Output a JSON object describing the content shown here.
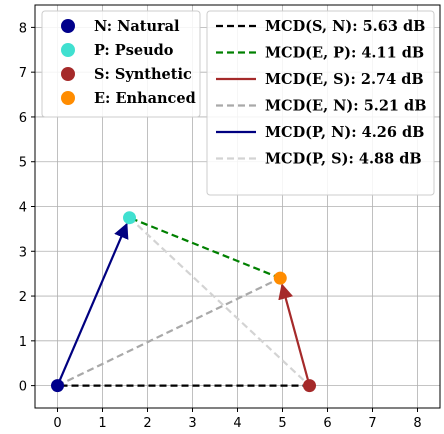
{
  "chart_data": {
    "type": "scatter",
    "xlim": [
      -0.5,
      8.5
    ],
    "ylim": [
      -0.5,
      8.5
    ],
    "x_ticks": [
      0,
      1,
      2,
      3,
      4,
      5,
      6,
      7,
      8
    ],
    "y_ticks": [
      0,
      1,
      2,
      3,
      4,
      5,
      6,
      7,
      8
    ],
    "grid": true,
    "points": [
      {
        "name": "N: Natural",
        "x": 0.0,
        "y": 0.0,
        "color": "#00008b"
      },
      {
        "name": "P: Pseudo",
        "x": 1.6,
        "y": 3.75,
        "color": "#40e0d0"
      },
      {
        "name": "S: Synthetic",
        "x": 5.6,
        "y": 0.0,
        "color": "#a52a2a"
      },
      {
        "name": "E: Enhanced",
        "x": 4.95,
        "y": 2.4,
        "color": "#ff8c00"
      }
    ],
    "lines": [
      {
        "name": "MCD(S, N): 5.63 dB",
        "from": "S: Synthetic",
        "to": "N: Natural",
        "color": "#000000",
        "style": "dashed",
        "arrow": false
      },
      {
        "name": "MCD(E, P): 4.11 dB",
        "from": "E: Enhanced",
        "to": "P: Pseudo",
        "color": "#008000",
        "style": "dashed",
        "arrow": false
      },
      {
        "name": "MCD(E, S): 2.74 dB",
        "from": "S: Synthetic",
        "to": "E: Enhanced",
        "color": "#a52a2a",
        "style": "solid",
        "arrow": true
      },
      {
        "name": "MCD(E, N): 5.21 dB",
        "from": "N: Natural",
        "to": "E: Enhanced",
        "color": "#a9a9a9",
        "style": "dashed",
        "arrow": false
      },
      {
        "name": "MCD(P, N): 4.26 dB",
        "from": "N: Natural",
        "to": "P: Pseudo",
        "color": "#000080",
        "style": "solid",
        "arrow": true
      },
      {
        "name": "MCD(P, S): 4.88 dB",
        "from": "P: Pseudo",
        "to": "S: Synthetic",
        "color": "#d3d3d3",
        "style": "dashed",
        "arrow": false
      }
    ],
    "legend_points_placement": "top-left",
    "legend_lines_placement": "top-right"
  }
}
